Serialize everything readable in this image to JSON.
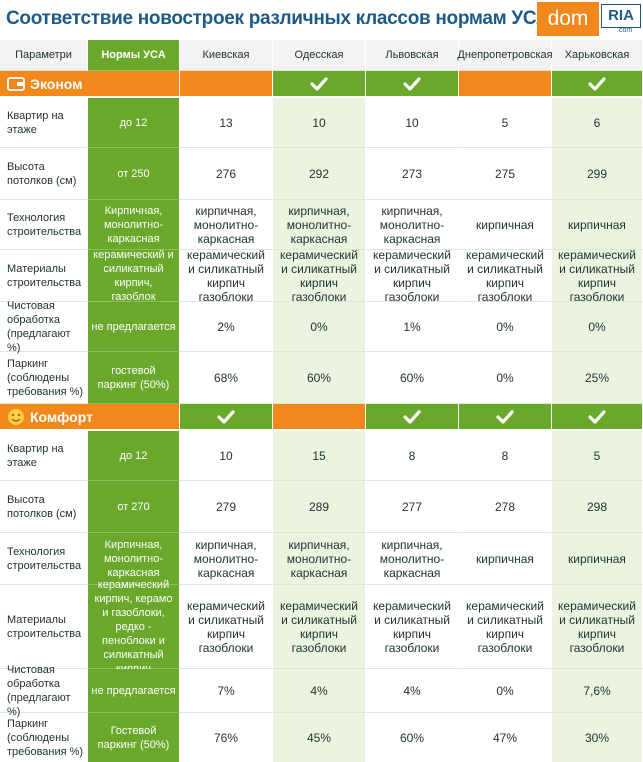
{
  "header": {
    "title": "Соответствие новостроек различных классов нормам УСА",
    "logo": {
      "main": "dom",
      "badge": "RIA",
      "suffix": ".com"
    }
  },
  "table": {
    "columns": [
      "Параметри",
      "Нормы УСА",
      "Киевская",
      "Одесская",
      "Львовская",
      "Днепропетровская",
      "Харьковская"
    ],
    "sections": [
      {
        "name": "Эконом",
        "compliant": [
          false,
          true,
          true,
          false,
          true
        ],
        "rows": [
          {
            "label": "Квартир на этаже",
            "norm": "до 12",
            "values": [
              "13",
              "10",
              "10",
              "5",
              "6"
            ]
          },
          {
            "label": "Высота потолков (см)",
            "norm": "от 250",
            "values": [
              "276",
              "292",
              "273",
              "275",
              "299"
            ]
          },
          {
            "label": "Технология строительства",
            "norm": "Кирпичная, монолитно-каркасная",
            "values": [
              "кирпичная, монолитно-каркасная",
              "кирпичная, монолитно-каркасная",
              "кирпичная, монолитно-каркасная",
              "кирпичная",
              "кирпичная"
            ]
          },
          {
            "label": "Материалы строительства",
            "norm": "керамический и силикатный кирпич, газоблок",
            "values": [
              "керамический и силикатный кирпич газоблоки",
              "керамический и силикатный кирпич газоблоки",
              "керамический и силикатный кирпич газоблоки",
              "керамический и силикатный кирпич газоблоки",
              "керамический и силикатный кирпич газоблоки"
            ]
          },
          {
            "label": "Чистовая обработка (предлагают %)",
            "norm": "не предлагается",
            "values": [
              "2%",
              "0%",
              "1%",
              "0%",
              "0%"
            ]
          },
          {
            "label": "Паркинг (соблюдены требования %)",
            "norm": "гостевой паркинг (50%)",
            "values": [
              "68%",
              "60%",
              "60%",
              "0%",
              "25%"
            ]
          }
        ]
      },
      {
        "name": "Комфорт",
        "compliant": [
          true,
          false,
          true,
          true,
          true
        ],
        "rows": [
          {
            "label": "Квартир на этаже",
            "norm": "до 12",
            "values": [
              "10",
              "15",
              "8",
              "8",
              "5"
            ]
          },
          {
            "label": "Высота потолков (см)",
            "norm": "от 270",
            "values": [
              "279",
              "289",
              "277",
              "278",
              "298"
            ]
          },
          {
            "label": "Технология строительства",
            "norm": "Кирпичная, монолитно-каркасная",
            "values": [
              "кирпичная, монолитно-каркасная",
              "кирпичная, монолитно-каркасная",
              "кирпичная, монолитно-каркасная",
              "кирпичная",
              "кирпичная"
            ]
          },
          {
            "label": "Материалы строительства",
            "norm": "керамический кирпич, керамо и газоблоки, редко - пеноблоки и силикатный кирпич",
            "values": [
              "керамический и силикатный кирпич газоблоки",
              "керамический и силикатный кирпич газоблоки",
              "керамический и силикатный кирпич газоблоки",
              "керамический и силикатный кирпич газоблоки",
              "керамический и силикатный кирпич газоблоки"
            ]
          },
          {
            "label": "Чистовая обработка (предлагают %)",
            "norm": "не предлагается",
            "values": [
              "7%",
              "4%",
              "4%",
              "0%",
              "7,6%"
            ]
          },
          {
            "label": "Паркинг (соблюдены требования %)",
            "norm": "Гостевой паркинг (50%)",
            "values": [
              "76%",
              "45%",
              "60%",
              "47%",
              "30%"
            ]
          }
        ]
      }
    ]
  }
}
